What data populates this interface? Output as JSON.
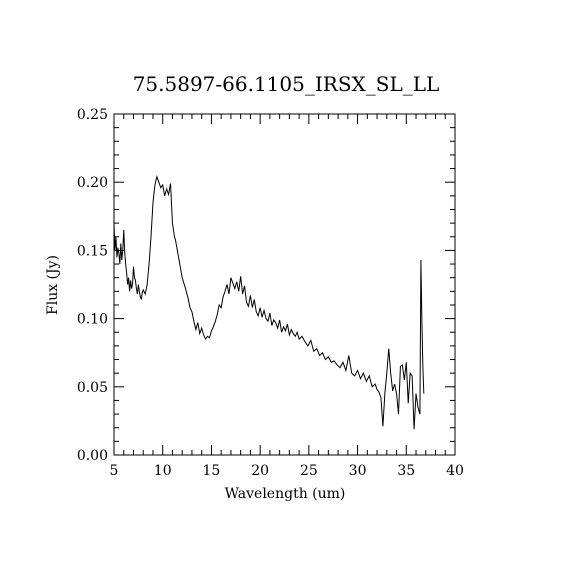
{
  "chart_data": {
    "type": "line",
    "title": "75.5897-66.1105_IRSX_SL_LL",
    "xlabel": "Wavelength (um)",
    "ylabel": "Flux (Jy)",
    "xlim": [
      5,
      40
    ],
    "ylim": [
      0.0,
      0.25
    ],
    "x_ticks": [
      "5",
      "10",
      "15",
      "20",
      "25",
      "30",
      "35",
      "40"
    ],
    "y_ticks": [
      "0.00",
      "0.05",
      "0.10",
      "0.15",
      "0.20",
      "0.25"
    ],
    "grid": false,
    "series": [
      {
        "x": [
          5.0,
          5.1,
          5.2,
          5.3,
          5.4,
          5.5,
          5.6,
          5.7,
          5.8,
          5.9,
          6.0,
          6.1,
          6.2,
          6.3,
          6.4,
          6.5,
          6.6,
          6.7,
          6.8,
          6.9,
          7.0,
          7.1,
          7.2,
          7.3,
          7.4,
          7.5,
          7.6,
          7.7,
          7.8,
          7.9,
          8.0,
          8.2,
          8.4,
          8.6,
          8.8,
          9.0,
          9.2,
          9.4,
          9.6,
          9.8,
          10.0,
          10.2,
          10.4,
          10.6,
          10.8,
          11.0,
          11.2,
          11.3,
          11.5,
          11.7,
          12.0,
          12.3,
          12.6,
          12.8,
          13.0,
          13.2,
          13.4,
          13.6,
          13.8,
          14.0,
          14.2,
          14.4,
          14.6,
          14.8,
          15.0,
          15.2,
          15.4,
          15.6,
          15.8,
          16.0,
          16.2,
          16.4,
          16.6,
          16.8,
          17.0,
          17.2,
          17.4,
          17.6,
          17.8,
          18.0,
          18.2,
          18.4,
          18.6,
          18.8,
          19.0,
          19.2,
          19.4,
          19.6,
          19.8,
          20.0,
          20.2,
          20.4,
          20.6,
          20.8,
          21.0,
          21.2,
          21.4,
          21.6,
          21.8,
          22.0,
          22.2,
          22.4,
          22.6,
          22.8,
          23.0,
          23.2,
          23.4,
          23.6,
          23.8,
          24.0,
          24.3,
          24.6,
          24.9,
          25.2,
          25.5,
          25.8,
          26.1,
          26.4,
          26.7,
          27.0,
          27.3,
          27.6,
          27.9,
          28.2,
          28.5,
          28.8,
          29.1,
          29.4,
          29.7,
          30.0,
          30.3,
          30.6,
          30.9,
          31.2,
          31.5,
          31.8,
          32.0,
          32.2,
          32.4,
          32.6,
          32.8,
          33.0,
          33.2,
          33.4,
          33.6,
          33.8,
          34.0,
          34.2,
          34.4,
          34.6,
          34.8,
          35.0,
          35.2,
          35.4,
          35.6,
          35.8,
          36.0,
          36.2,
          36.4,
          36.5,
          36.6,
          36.7,
          36.8
        ],
        "y": [
          0.17,
          0.15,
          0.16,
          0.145,
          0.152,
          0.148,
          0.14,
          0.155,
          0.143,
          0.15,
          0.165,
          0.148,
          0.14,
          0.133,
          0.125,
          0.13,
          0.12,
          0.128,
          0.122,
          0.125,
          0.138,
          0.13,
          0.128,
          0.122,
          0.118,
          0.125,
          0.12,
          0.116,
          0.114,
          0.119,
          0.121,
          0.118,
          0.125,
          0.14,
          0.16,
          0.185,
          0.198,
          0.204,
          0.2,
          0.196,
          0.198,
          0.19,
          0.195,
          0.191,
          0.199,
          0.17,
          0.16,
          0.158,
          0.15,
          0.142,
          0.13,
          0.123,
          0.115,
          0.108,
          0.105,
          0.098,
          0.092,
          0.097,
          0.089,
          0.093,
          0.088,
          0.085,
          0.087,
          0.086,
          0.091,
          0.094,
          0.098,
          0.103,
          0.11,
          0.108,
          0.116,
          0.12,
          0.125,
          0.118,
          0.13,
          0.126,
          0.122,
          0.127,
          0.12,
          0.131,
          0.118,
          0.124,
          0.112,
          0.109,
          0.117,
          0.108,
          0.114,
          0.105,
          0.102,
          0.108,
          0.101,
          0.106,
          0.1,
          0.098,
          0.104,
          0.095,
          0.099,
          0.097,
          0.093,
          0.099,
          0.09,
          0.094,
          0.091,
          0.096,
          0.088,
          0.092,
          0.089,
          0.087,
          0.09,
          0.085,
          0.087,
          0.083,
          0.08,
          0.084,
          0.076,
          0.078,
          0.073,
          0.075,
          0.07,
          0.072,
          0.068,
          0.069,
          0.066,
          0.064,
          0.068,
          0.062,
          0.073,
          0.06,
          0.058,
          0.062,
          0.056,
          0.06,
          0.054,
          0.058,
          0.05,
          0.052,
          0.048,
          0.046,
          0.042,
          0.021,
          0.045,
          0.06,
          0.078,
          0.06,
          0.047,
          0.052,
          0.045,
          0.03,
          0.065,
          0.066,
          0.055,
          0.068,
          0.038,
          0.06,
          0.058,
          0.019,
          0.045,
          0.035,
          0.03,
          0.143,
          0.1,
          0.065,
          0.045
        ]
      }
    ]
  }
}
